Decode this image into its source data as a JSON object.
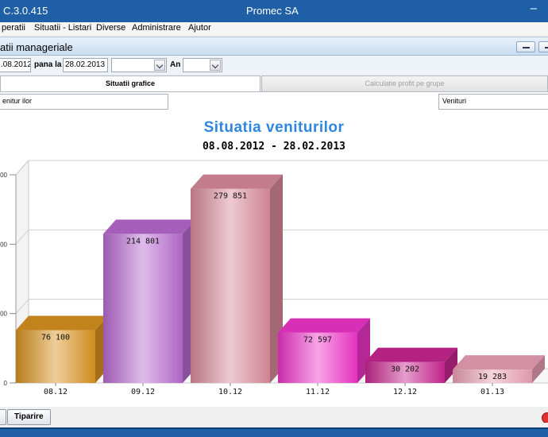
{
  "window": {
    "app_version": "C.3.0.415",
    "title": "Promec SA",
    "minimize_glyph": "–"
  },
  "menu": {
    "items": [
      {
        "label": "peratii"
      },
      {
        "label": "Situatii - Listari"
      },
      {
        "label": "Diverse"
      },
      {
        "label": "Administrare"
      },
      {
        "label": "Ajutor"
      }
    ]
  },
  "panel": {
    "title": "atii manageriale"
  },
  "filters": {
    "date_from": ".08.2012",
    "until_label": "pana la",
    "date_to": "28.02.2013",
    "period_select": "",
    "year_label": "An",
    "year_select": ""
  },
  "tabs": [
    {
      "label": "Situatii grafice",
      "active": true
    },
    {
      "label": "Calculatie profit pe grupe",
      "active": false
    }
  ],
  "selectors": {
    "report": "enitur ilor",
    "measure": "Venituri"
  },
  "colors": {
    "title_blue": "#2f86e0",
    "window_blue": "#1f5fa6"
  },
  "chart_data": {
    "type": "bar",
    "title": "Situatia veniturilor",
    "subtitle": "08.08.2012 - 28.02.2013",
    "categories": [
      "08.12",
      "09.12",
      "10.12",
      "11.12",
      "12.12",
      "01.13"
    ],
    "values": [
      76100,
      214801,
      279851,
      72597,
      30202,
      19283
    ],
    "value_labels": [
      "76 100",
      "214 801",
      "279 851",
      "72 597",
      "30 202",
      "19 283"
    ],
    "bar_colors": [
      "#d9921f",
      "#b76ad0",
      "#d98a9a",
      "#ef34c9",
      "#c8268f",
      "#ea9fb6"
    ],
    "ytick_labels": [
      "00",
      "00",
      "00",
      "0"
    ],
    "ylim": [
      0,
      300000
    ],
    "grid": true,
    "legend": "none"
  },
  "buttons": {
    "print_label": "Tiparire"
  }
}
